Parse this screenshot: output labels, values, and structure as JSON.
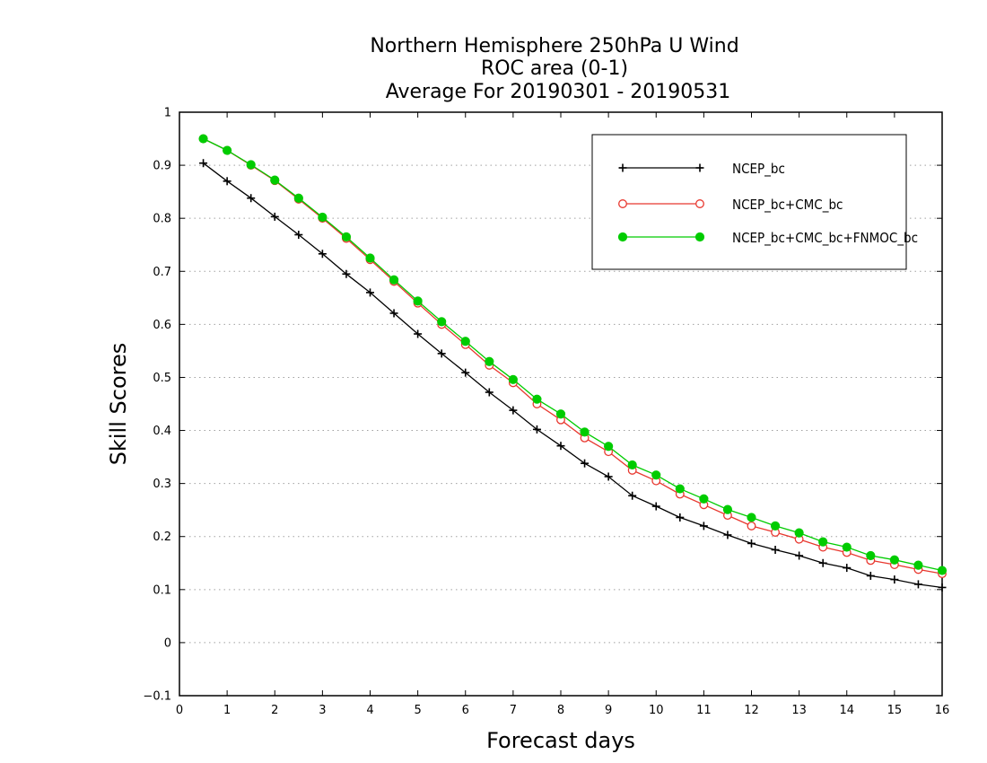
{
  "chart_data": {
    "type": "line",
    "title_lines": [
      "Northern Hemisphere 250hPa U Wind",
      "ROC area (0-1)",
      "Average For 20190301 - 20190531"
    ],
    "xlabel": "Forecast days",
    "ylabel": "Skill Scores",
    "xlim": [
      0,
      16
    ],
    "ylim": [
      -0.1,
      1
    ],
    "x_ticks": [
      "0",
      "1",
      "2",
      "3",
      "4",
      "5",
      "6",
      "7",
      "8",
      "9",
      "10",
      "11",
      "12",
      "13",
      "14",
      "15",
      "16"
    ],
    "y_ticks": [
      "−0.1",
      "0",
      "0.1",
      "0.2",
      "0.3",
      "0.4",
      "0.5",
      "0.6",
      "0.7",
      "0.8",
      "0.9",
      "1"
    ],
    "y_tick_values": [
      -0.1,
      0,
      0.1,
      0.2,
      0.3,
      0.4,
      0.5,
      0.6,
      0.7,
      0.8,
      0.9,
      1.0
    ],
    "grid": "horizontal-dotted",
    "legend_position": "top-right",
    "x": [
      0.5,
      1,
      1.5,
      2,
      2.5,
      3,
      3.5,
      4,
      4.5,
      5,
      5.5,
      6,
      6.5,
      7,
      7.5,
      8,
      8.5,
      9,
      9.5,
      10,
      10.5,
      11,
      11.5,
      12,
      12.5,
      13,
      13.5,
      14,
      14.5,
      15,
      15.5,
      16
    ],
    "series": [
      {
        "name": "NCEP_bc",
        "color": "#000000",
        "marker": "plus",
        "values": [
          0.904,
          0.87,
          0.838,
          0.803,
          0.769,
          0.733,
          0.695,
          0.66,
          0.621,
          0.582,
          0.545,
          0.509,
          0.472,
          0.438,
          0.402,
          0.371,
          0.338,
          0.313,
          0.277,
          0.257,
          0.236,
          0.22,
          0.203,
          0.187,
          0.175,
          0.164,
          0.15,
          0.141,
          0.126,
          0.119,
          0.11,
          0.104
        ]
      },
      {
        "name": "NCEP_bc+CMC_bc",
        "color": "#e8382f",
        "marker": "open-circle",
        "values": [
          0.95,
          0.928,
          0.9,
          0.871,
          0.836,
          0.8,
          0.762,
          0.722,
          0.681,
          0.64,
          0.6,
          0.562,
          0.523,
          0.49,
          0.45,
          0.42,
          0.386,
          0.36,
          0.325,
          0.305,
          0.28,
          0.26,
          0.24,
          0.22,
          0.208,
          0.195,
          0.18,
          0.17,
          0.155,
          0.147,
          0.138,
          0.13
        ]
      },
      {
        "name": "NCEP_bc+CMC_bc+FNMOC_bc",
        "color": "#00cc00",
        "marker": "filled-circle",
        "values": [
          0.95,
          0.928,
          0.901,
          0.872,
          0.838,
          0.802,
          0.765,
          0.725,
          0.684,
          0.644,
          0.605,
          0.568,
          0.53,
          0.496,
          0.459,
          0.431,
          0.397,
          0.37,
          0.335,
          0.316,
          0.29,
          0.271,
          0.251,
          0.236,
          0.22,
          0.207,
          0.19,
          0.18,
          0.164,
          0.156,
          0.146,
          0.136
        ]
      }
    ]
  }
}
